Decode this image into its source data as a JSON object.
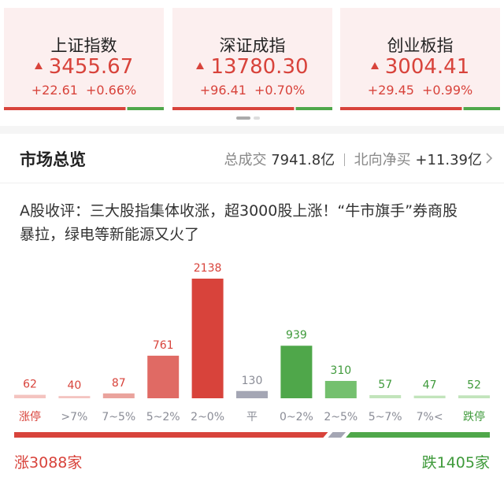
{
  "cards": [
    {
      "name": "上证指数",
      "value": "3455.67",
      "change": "+22.61",
      "percent": "+0.66%"
    },
    {
      "name": "深证成指",
      "value": "13780.30",
      "change": "+96.41",
      "percent": "+0.70%"
    },
    {
      "name": "创业板指",
      "value": "3004.41",
      "change": "+29.45",
      "percent": "+0.99%"
    }
  ],
  "overview": {
    "title": "市场总览",
    "turnover_label": "总成交",
    "turnover": "7941.8亿",
    "northbound_label": "北向净买",
    "northbound": "+11.39亿"
  },
  "comment": "A股收评：三大股指集体收涨，超3000股上涨！“牛市旗手”券商股暴拉，绿电等新能源又火了",
  "chart_data": {
    "type": "bar",
    "categories": [
      "涨停",
      ">7%",
      "7~5%",
      "5~2%",
      "2~0%",
      "平",
      "0~2%",
      "2~5%",
      "5~7%",
      "7%<",
      "跌停"
    ],
    "values": [
      62,
      40,
      87,
      761,
      2138,
      130,
      939,
      310,
      57,
      47,
      52
    ],
    "colors": [
      "#f4c4c0",
      "#f4c4c0",
      "#eaa39d",
      "#e06a64",
      "#d8433b",
      "#a4a6b4",
      "#4fa74a",
      "#74c06e",
      "#c2e4bb",
      "#c2e4bb",
      "#c2e4bb"
    ],
    "label_colors": [
      "#d8433b",
      "#d8433b",
      "#d8433b",
      "#d8433b",
      "#d8433b",
      "#8a8c96",
      "#3f9a3b",
      "#3f9a3b",
      "#3f9a3b",
      "#3f9a3b",
      "#3f9a3b"
    ],
    "category_colors": [
      "#d8433b",
      "#8a8c96",
      "#8a8c96",
      "#8a8c96",
      "#8a8c96",
      "#8a8c96",
      "#8a8c96",
      "#8a8c96",
      "#8a8c96",
      "#8a8c96",
      "#3f9a3b"
    ]
  },
  "summary": {
    "up_label": "涨",
    "up_count": 3088,
    "down_label": "跌",
    "down_count": 1405,
    "unit": "家"
  }
}
